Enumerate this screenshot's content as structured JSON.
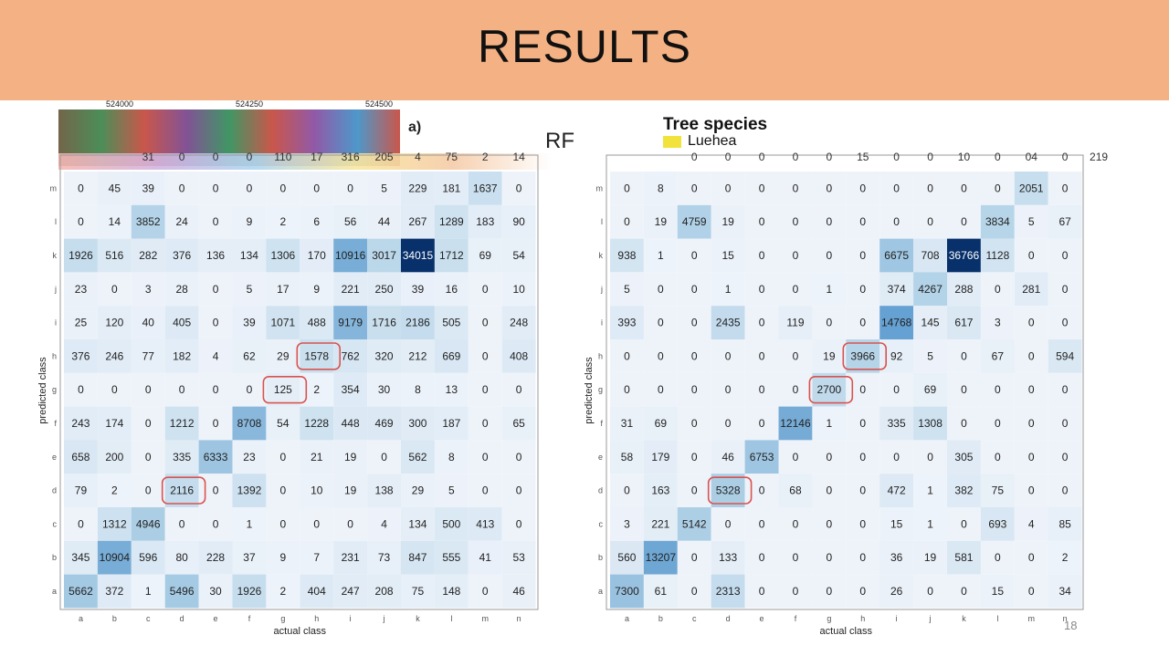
{
  "slide": {
    "title": "RESULTS",
    "page_number": "18",
    "panel_label": "a)",
    "method_label": "RF",
    "map_coords": [
      "524000",
      "524250",
      "524500"
    ],
    "legend": {
      "title": "Tree species",
      "item": "Luehea",
      "item_color": "#f1e33b"
    }
  },
  "colors": {
    "header": "#f4b183",
    "highlight": "#d9534f",
    "cell_base": "#eef3fa",
    "cell_max": "#08306b"
  },
  "chart_data": [
    {
      "type": "heatmap",
      "title": "",
      "xlabel": "actual class",
      "ylabel": "predicted class",
      "x_categories": [
        "a",
        "b",
        "c",
        "d",
        "e",
        "f",
        "g",
        "h",
        "i",
        "j",
        "k",
        "l",
        "m",
        "n"
      ],
      "y_categories": [
        "m",
        "l",
        "k",
        "j",
        "i",
        "h",
        "g",
        "f",
        "e",
        "d",
        "c",
        "b",
        "a"
      ],
      "values": [
        [
          0,
          45,
          39,
          0,
          0,
          0,
          0,
          0,
          0,
          5,
          229,
          181,
          1637,
          0
        ],
        [
          0,
          14,
          3852,
          24,
          0,
          9,
          2,
          6,
          56,
          44,
          267,
          1289,
          183,
          90
        ],
        [
          1926,
          516,
          282,
          376,
          136,
          134,
          1306,
          170,
          10916,
          3017,
          34015,
          1712,
          69,
          54
        ],
        [
          23,
          0,
          3,
          28,
          0,
          5,
          17,
          9,
          221,
          250,
          39,
          16,
          0,
          10
        ],
        [
          25,
          120,
          40,
          405,
          0,
          39,
          1071,
          488,
          9179,
          1716,
          2186,
          505,
          0,
          248
        ],
        [
          376,
          246,
          77,
          182,
          4,
          62,
          29,
          1578,
          762,
          320,
          212,
          669,
          0,
          408
        ],
        [
          0,
          0,
          0,
          0,
          0,
          0,
          125,
          2,
          354,
          30,
          8,
          13,
          0,
          0
        ],
        [
          243,
          174,
          0,
          1212,
          0,
          8708,
          54,
          1228,
          448,
          469,
          300,
          187,
          0,
          65
        ],
        [
          658,
          200,
          0,
          335,
          6333,
          23,
          0,
          21,
          19,
          0,
          562,
          8,
          0,
          0
        ],
        [
          79,
          2,
          0,
          2116,
          0,
          1392,
          0,
          10,
          19,
          138,
          29,
          5,
          0,
          0
        ],
        [
          0,
          1312,
          4946,
          0,
          0,
          1,
          0,
          0,
          0,
          4,
          134,
          500,
          413,
          0
        ],
        [
          345,
          10904,
          596,
          80,
          228,
          37,
          9,
          7,
          231,
          73,
          847,
          555,
          41,
          53
        ],
        [
          5662,
          372,
          1,
          5496,
          30,
          1926,
          2,
          404,
          247,
          208,
          75,
          148,
          0,
          46
        ]
      ],
      "highlighted_cells": [
        [
          "d",
          "d"
        ],
        [
          "g",
          "g"
        ],
        [
          "h",
          "h"
        ]
      ],
      "partial_top_row": [
        "31",
        "0",
        "0",
        "0",
        "110",
        "17",
        "316",
        "205",
        "4",
        "75",
        "2",
        "14"
      ]
    },
    {
      "type": "heatmap",
      "title": "",
      "xlabel": "actual class",
      "ylabel": "predicted class",
      "x_categories": [
        "a",
        "b",
        "c",
        "d",
        "e",
        "f",
        "g",
        "h",
        "i",
        "j",
        "k",
        "l",
        "m",
        "n"
      ],
      "y_categories": [
        "m",
        "l",
        "k",
        "j",
        "i",
        "h",
        "g",
        "f",
        "e",
        "d",
        "c",
        "b",
        "a"
      ],
      "values": [
        [
          0,
          8,
          0,
          0,
          0,
          0,
          0,
          0,
          0,
          0,
          0,
          0,
          2051,
          0
        ],
        [
          0,
          19,
          4759,
          19,
          0,
          0,
          0,
          0,
          0,
          0,
          0,
          3834,
          5,
          67
        ],
        [
          938,
          1,
          0,
          15,
          0,
          0,
          0,
          0,
          6675,
          708,
          36766,
          1128,
          0,
          0
        ],
        [
          5,
          0,
          0,
          1,
          0,
          0,
          1,
          0,
          374,
          4267,
          288,
          0,
          281,
          0
        ],
        [
          393,
          0,
          0,
          2435,
          0,
          119,
          0,
          0,
          14768,
          145,
          617,
          3,
          0,
          0
        ],
        [
          0,
          0,
          0,
          0,
          0,
          0,
          19,
          3966,
          92,
          5,
          0,
          67,
          0,
          594
        ],
        [
          0,
          0,
          0,
          0,
          0,
          0,
          2700,
          0,
          0,
          69,
          0,
          0,
          0,
          0
        ],
        [
          31,
          69,
          0,
          0,
          0,
          12146,
          1,
          0,
          335,
          1308,
          0,
          0,
          0,
          0
        ],
        [
          58,
          179,
          0,
          46,
          6753,
          0,
          0,
          0,
          0,
          0,
          305,
          0,
          0,
          0
        ],
        [
          0,
          163,
          0,
          5328,
          0,
          68,
          0,
          0,
          472,
          1,
          382,
          75,
          0,
          0
        ],
        [
          3,
          221,
          5142,
          0,
          0,
          0,
          0,
          0,
          15,
          1,
          0,
          693,
          4,
          85
        ],
        [
          560,
          13207,
          0,
          133,
          0,
          0,
          0,
          0,
          36,
          19,
          581,
          0,
          0,
          2
        ],
        [
          7300,
          61,
          0,
          2313,
          0,
          0,
          0,
          0,
          26,
          0,
          0,
          15,
          0,
          34
        ]
      ],
      "highlighted_cells": [
        [
          "d",
          "d"
        ],
        [
          "g",
          "g"
        ],
        [
          "h",
          "h"
        ]
      ],
      "partial_top_row": [
        "0",
        "0",
        "0",
        "0",
        "0",
        "15",
        "0",
        "0",
        "10",
        "0",
        "04",
        "0",
        "219"
      ]
    }
  ]
}
